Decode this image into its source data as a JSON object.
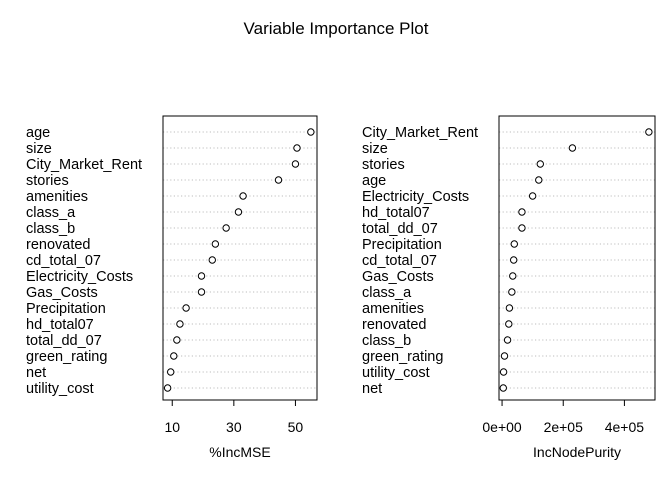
{
  "title": "Variable Importance Plot",
  "chart_data": [
    {
      "type": "scatter",
      "subtype": "dotchart",
      "xlabel": "%IncMSE",
      "xlim": [
        7,
        57
      ],
      "xticks": [
        10,
        30,
        50
      ],
      "xtick_labels": [
        "10",
        "30",
        "50"
      ],
      "grid": "dotted horizontal",
      "categories": [
        "age",
        "size",
        "City_Market_Rent",
        "stories",
        "amenities",
        "class_a",
        "class_b",
        "renovated",
        "cd_total_07",
        "Electricity_Costs",
        "Gas_Costs",
        "Precipitation",
        "hd_total07",
        "total_dd_07",
        "green_rating",
        "net",
        "utility_cost"
      ],
      "values": [
        55.0,
        50.5,
        50.0,
        44.5,
        33.0,
        31.5,
        27.5,
        24.0,
        23.0,
        19.5,
        19.5,
        14.5,
        12.5,
        11.5,
        10.5,
        9.5,
        8.5
      ]
    },
    {
      "type": "scatter",
      "subtype": "dotchart",
      "xlabel": "IncNodePurity",
      "xlim": [
        -10000,
        500000
      ],
      "xticks": [
        0,
        200000,
        400000
      ],
      "xtick_labels": [
        "0e+00",
        "2e+05",
        "4e+05"
      ],
      "grid": "dotted horizontal",
      "categories": [
        "City_Market_Rent",
        "size",
        "stories",
        "age",
        "Electricity_Costs",
        "hd_total07",
        "total_dd_07",
        "Precipitation",
        "cd_total_07",
        "Gas_Costs",
        "class_a",
        "amenities",
        "renovated",
        "class_b",
        "green_rating",
        "utility_cost",
        "net"
      ],
      "values": [
        480000,
        230000,
        125000,
        120000,
        100000,
        65000,
        65000,
        40000,
        38000,
        35000,
        32000,
        24000,
        22000,
        18000,
        8000,
        5000,
        4000
      ]
    }
  ]
}
